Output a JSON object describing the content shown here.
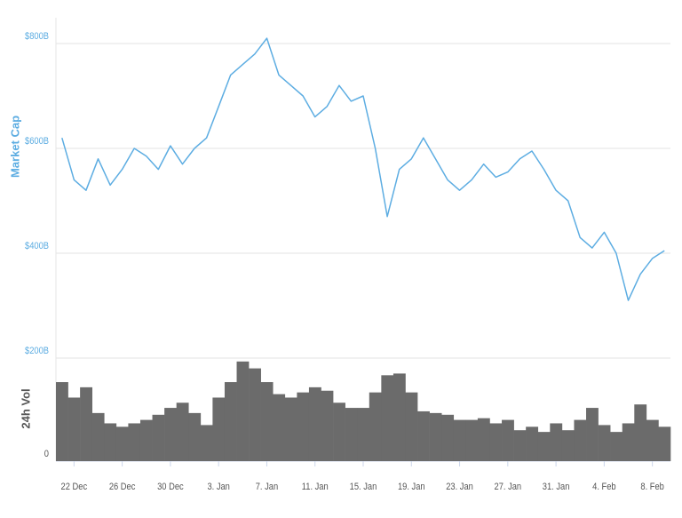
{
  "chart_data": [
    {
      "type": "line",
      "ylabel": "Market Cap",
      "color": "#5dade2",
      "categories": [
        null,
        "22 Dec",
        null,
        null,
        null,
        "26 Dec",
        null,
        null,
        null,
        "30 Dec",
        null,
        null,
        null,
        "3. Jan",
        null,
        null,
        null,
        "7. Jan",
        null,
        null,
        null,
        "11. Jan",
        null,
        null,
        null,
        "15. Jan",
        null,
        null,
        null,
        "19. Jan",
        null,
        null,
        null,
        "23. Jan",
        null,
        null,
        null,
        "27. Jan",
        null,
        null,
        null,
        "31. Jan",
        null,
        null,
        null,
        "4. Feb",
        null,
        null,
        null,
        "8. Feb",
        null
      ],
      "values": [
        620,
        540,
        520,
        580,
        530,
        560,
        600,
        585,
        560,
        605,
        570,
        600,
        620,
        680,
        740,
        760,
        780,
        810,
        740,
        720,
        700,
        660,
        680,
        720,
        690,
        700,
        600,
        470,
        560,
        580,
        620,
        580,
        540,
        520,
        540,
        570,
        545,
        555,
        580,
        595,
        560,
        520,
        500,
        430,
        410,
        440,
        400,
        310,
        360,
        390,
        405
      ],
      "ylim": [
        200,
        850
      ],
      "yticks": [
        {
          "value": 200,
          "label": "$200B"
        },
        {
          "value": 400,
          "label": "$400B"
        },
        {
          "value": 600,
          "label": "$600B"
        },
        {
          "value": 800,
          "label": "$800B"
        }
      ],
      "grid": true
    },
    {
      "type": "bar",
      "ylabel": "24h Vol",
      "color": "#6b6b6b",
      "values": [
        46,
        37,
        43,
        28,
        22,
        20,
        22,
        24,
        27,
        31,
        34,
        28,
        21,
        37,
        46,
        58,
        54,
        46,
        39,
        37,
        40,
        43,
        41,
        34,
        31,
        31,
        40,
        50,
        51,
        40,
        29,
        28,
        27,
        24,
        24,
        25,
        22,
        24,
        18,
        20,
        17,
        22,
        18,
        24,
        31,
        21,
        17,
        22,
        33,
        24,
        20
      ],
      "ylim": [
        0,
        60
      ],
      "yticks": [
        0
      ]
    }
  ]
}
